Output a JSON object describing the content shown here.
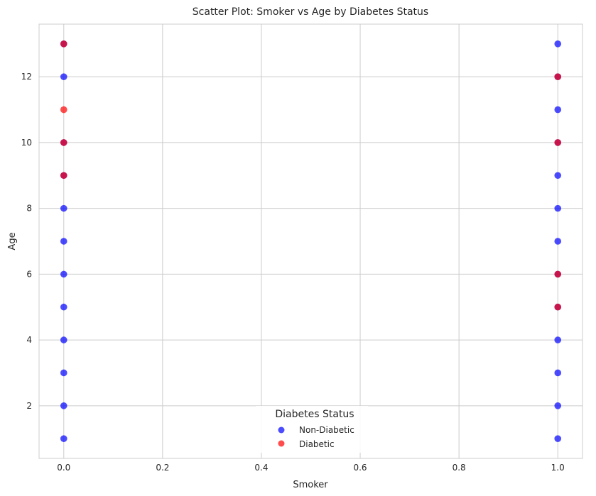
{
  "chart_data": {
    "type": "scatter",
    "title": "Scatter Plot: Smoker vs Age by Diabetes Status",
    "xlabel": "Smoker",
    "ylabel": "Age",
    "xlim": [
      -0.05,
      1.05
    ],
    "ylim": [
      0.4,
      13.6
    ],
    "x_ticks": [
      0.0,
      0.2,
      0.4,
      0.6,
      0.8,
      1.0
    ],
    "x_tick_labels": [
      "0.0",
      "0.2",
      "0.4",
      "0.6",
      "0.8",
      "1.0"
    ],
    "y_ticks": [
      2,
      4,
      6,
      8,
      10,
      12
    ],
    "y_tick_labels": [
      "2",
      "4",
      "6",
      "8",
      "10",
      "12"
    ],
    "grid": true,
    "legend": {
      "title": "Diabetes Status",
      "placement": "bottom-center",
      "entries": [
        "Non-Diabetic",
        "Diabetic"
      ]
    },
    "series": [
      {
        "name": "Non-Diabetic",
        "color": "#0000ff",
        "points": [
          [
            0,
            1
          ],
          [
            0,
            2
          ],
          [
            0,
            3
          ],
          [
            0,
            4
          ],
          [
            0,
            5
          ],
          [
            0,
            6
          ],
          [
            0,
            7
          ],
          [
            0,
            8
          ],
          [
            0,
            9
          ],
          [
            0,
            10
          ],
          [
            0,
            12
          ],
          [
            0,
            13
          ],
          [
            1,
            1
          ],
          [
            1,
            2
          ],
          [
            1,
            3
          ],
          [
            1,
            4
          ],
          [
            1,
            5
          ],
          [
            1,
            6
          ],
          [
            1,
            7
          ],
          [
            1,
            8
          ],
          [
            1,
            9
          ],
          [
            1,
            10
          ],
          [
            1,
            11
          ],
          [
            1,
            12
          ],
          [
            1,
            13
          ]
        ]
      },
      {
        "name": "Diabetic",
        "color": "#ff0000",
        "points": [
          [
            0,
            9
          ],
          [
            0,
            10
          ],
          [
            0,
            11
          ],
          [
            0,
            13
          ],
          [
            1,
            5
          ],
          [
            1,
            6
          ],
          [
            1,
            10
          ],
          [
            1,
            12
          ]
        ]
      }
    ]
  }
}
